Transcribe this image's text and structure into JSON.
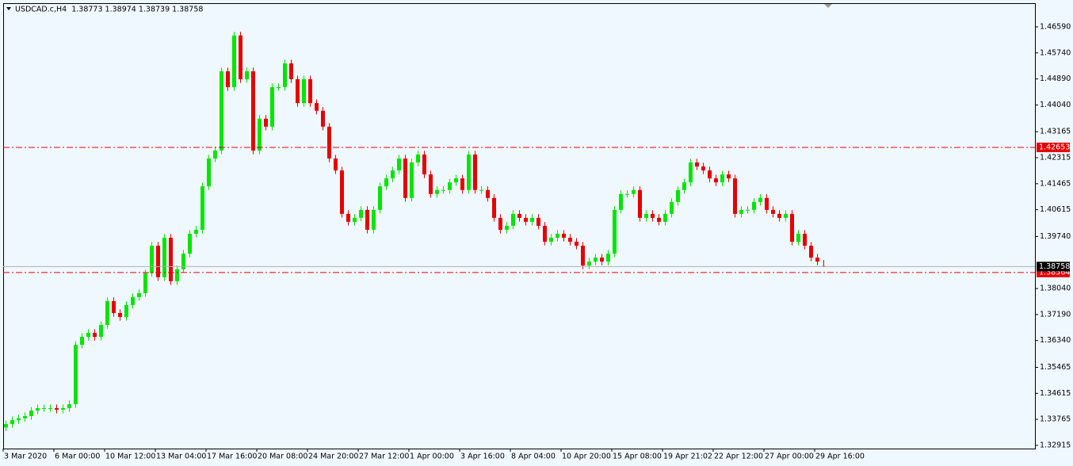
{
  "chart_data": {
    "type": "candlestick",
    "title": "USDCAD.c,H4  1.38773 1.38974 1.38739 1.38758",
    "up_color": "#00e600",
    "down_color": "#e60000",
    "hline_color": "#e60000",
    "ylim": [
      1.3281,
      1.4734
    ],
    "yticks": [
      {
        "value": 1.4659,
        "label": "1.46590"
      },
      {
        "value": 1.4574,
        "label": "1.45740"
      },
      {
        "value": 1.4489,
        "label": "1.44890"
      },
      {
        "value": 1.4404,
        "label": "1.44040"
      },
      {
        "value": 1.43165,
        "label": "1.43165"
      },
      {
        "value": 1.42315,
        "label": "1.42315"
      },
      {
        "value": 1.41465,
        "label": "1.41465"
      },
      {
        "value": 1.40615,
        "label": "1.40615"
      },
      {
        "value": 1.3974,
        "label": "1.39740"
      },
      {
        "value": 1.3804,
        "label": "1.38040"
      },
      {
        "value": 1.3719,
        "label": "1.37190"
      },
      {
        "value": 1.3634,
        "label": "1.36340"
      },
      {
        "value": 1.35465,
        "label": "1.35465"
      },
      {
        "value": 1.34615,
        "label": "1.34615"
      },
      {
        "value": 1.33765,
        "label": "1.33765"
      },
      {
        "value": 1.32915,
        "label": "1.32915"
      }
    ],
    "hlines": [
      1.42653,
      1.38564
    ],
    "current_price": 1.38758,
    "categories": [
      "3 Mar 2020",
      null,
      null,
      null,
      null,
      null,
      null,
      null,
      "6 Mar 00:00",
      null,
      null,
      null,
      null,
      null,
      null,
      null,
      "10 Mar 12:00",
      null,
      null,
      null,
      null,
      null,
      null,
      null,
      "13 Mar 04:00",
      null,
      null,
      null,
      null,
      null,
      null,
      null,
      "17 Mar 16:00",
      null,
      null,
      null,
      null,
      null,
      null,
      null,
      "20 Mar 08:00",
      null,
      null,
      null,
      null,
      null,
      null,
      null,
      "24 Mar 20:00",
      null,
      null,
      null,
      null,
      null,
      null,
      null,
      "27 Mar 12:00",
      null,
      null,
      null,
      null,
      null,
      null,
      null,
      "1 Apr 00:00",
      null,
      null,
      null,
      null,
      null,
      null,
      null,
      "3 Apr 16:00",
      null,
      null,
      null,
      null,
      null,
      null,
      null,
      "8 Apr 04:00",
      null,
      null,
      null,
      null,
      null,
      null,
      null,
      "10 Apr 20:00",
      null,
      null,
      null,
      null,
      null,
      null,
      null,
      "15 Apr 08:00",
      null,
      null,
      null,
      null,
      null,
      null,
      null,
      "19 Apr 21:02",
      null,
      null,
      null,
      null,
      null,
      null,
      null,
      "22 Apr 12:00",
      null,
      null,
      null,
      null,
      null,
      null,
      null,
      "27 Apr 00:00",
      null,
      null,
      null,
      null,
      null,
      null,
      null,
      "29 Apr 16:00",
      null
    ],
    "open": [
      1.335,
      1.3361,
      1.3374,
      1.338,
      1.3387,
      1.3405,
      1.3413,
      1.3413,
      1.3413,
      1.3408,
      1.3413,
      1.3426,
      1.362,
      1.3646,
      1.3659,
      1.3646,
      1.3685,
      1.3763,
      1.3724,
      1.3711,
      1.375,
      1.3776,
      1.3789,
      1.3854,
      1.3944,
      1.3841,
      1.397,
      1.3828,
      1.3867,
      1.3918,
      1.3983,
      1.3996,
      1.4138,
      1.4229,
      1.4255,
      1.4514,
      1.4462,
      1.4631,
      1.4488,
      1.4514,
      1.4255,
      1.4359,
      1.4333,
      1.4462,
      1.4462,
      1.454,
      1.4488,
      1.441,
      1.4488,
      1.441,
      1.4385,
      1.4333,
      1.4229,
      1.419,
      1.4048,
      1.4022,
      1.4035,
      1.4061,
      1.3996,
      1.4061,
      1.4138,
      1.4164,
      1.419,
      1.4229,
      1.41,
      1.4216,
      1.4242,
      1.4177,
      1.4113,
      1.4126,
      1.4126,
      1.4151,
      1.4164,
      1.4126,
      1.4242,
      1.4126,
      1.4126,
      1.41,
      1.4035,
      1.3996,
      1.4009,
      1.4048,
      1.4035,
      1.4022,
      1.4035,
      1.4009,
      1.3957,
      1.397,
      1.3983,
      1.397,
      1.3957,
      1.3944,
      1.3879,
      1.3892,
      1.3905,
      1.3892,
      1.3918,
      1.4061,
      1.4113,
      1.4113,
      1.4126,
      1.4035,
      1.4048,
      1.4035,
      1.4022,
      1.4048,
      1.4087,
      1.4126,
      1.4151,
      1.4216,
      1.4203,
      1.419,
      1.4164,
      1.4151,
      1.4177,
      1.4164,
      1.4048,
      1.4061,
      1.4061,
      1.4087,
      1.41,
      1.4061,
      1.4048,
      1.4035,
      1.4048,
      1.3957,
      1.3983,
      1.3944,
      1.3905,
      1.38773
    ],
    "high": [
      1.3373,
      1.3386,
      1.3392,
      1.3399,
      1.3417,
      1.3425,
      1.3425,
      1.3425,
      1.3425,
      1.3425,
      1.3438,
      1.3632,
      1.3658,
      1.3671,
      1.3671,
      1.3697,
      1.3775,
      1.3775,
      1.3736,
      1.3762,
      1.3788,
      1.3801,
      1.3866,
      1.3956,
      1.3956,
      1.3982,
      1.3982,
      1.3879,
      1.393,
      1.3995,
      1.4008,
      1.415,
      1.4241,
      1.4267,
      1.4526,
      1.4526,
      1.4643,
      1.4643,
      1.4526,
      1.4526,
      1.4371,
      1.4371,
      1.4474,
      1.4474,
      1.4552,
      1.4552,
      1.45,
      1.45,
      1.45,
      1.4422,
      1.4397,
      1.4345,
      1.4241,
      1.4202,
      1.406,
      1.4047,
      1.4073,
      1.4073,
      1.4073,
      1.415,
      1.4176,
      1.4202,
      1.4241,
      1.4241,
      1.4228,
      1.4254,
      1.4254,
      1.4189,
      1.4138,
      1.4138,
      1.4163,
      1.4176,
      1.4176,
      1.4254,
      1.4254,
      1.4138,
      1.4138,
      1.4112,
      1.4047,
      1.4021,
      1.406,
      1.406,
      1.4047,
      1.4047,
      1.4047,
      1.4021,
      1.3982,
      1.3995,
      1.3995,
      1.3982,
      1.3969,
      1.3956,
      1.3904,
      1.3917,
      1.3917,
      1.393,
      1.4073,
      1.4125,
      1.4125,
      1.4138,
      1.4138,
      1.406,
      1.406,
      1.4047,
      1.406,
      1.4099,
      1.4138,
      1.4163,
      1.4228,
      1.4228,
      1.4215,
      1.4202,
      1.4176,
      1.4189,
      1.4189,
      1.4176,
      1.4073,
      1.4073,
      1.4099,
      1.4112,
      1.4112,
      1.4073,
      1.406,
      1.406,
      1.406,
      1.3995,
      1.3995,
      1.3956,
      1.3917,
      1.38974
    ],
    "low": [
      1.3338,
      1.3349,
      1.3362,
      1.3368,
      1.3375,
      1.3393,
      1.3401,
      1.3401,
      1.3396,
      1.3396,
      1.3401,
      1.3414,
      1.3608,
      1.3634,
      1.3634,
      1.3634,
      1.3673,
      1.3712,
      1.3699,
      1.3699,
      1.3738,
      1.3764,
      1.3777,
      1.3842,
      1.3829,
      1.3829,
      1.3816,
      1.3816,
      1.3855,
      1.3906,
      1.3971,
      1.3984,
      1.4126,
      1.4217,
      1.4243,
      1.445,
      1.445,
      1.4476,
      1.4476,
      1.4243,
      1.4243,
      1.4321,
      1.4321,
      1.445,
      1.445,
      1.4476,
      1.4398,
      1.4398,
      1.4398,
      1.4373,
      1.4321,
      1.4217,
      1.4178,
      1.4036,
      1.401,
      1.401,
      1.4023,
      1.3984,
      1.3984,
      1.4049,
      1.4126,
      1.4152,
      1.4178,
      1.4088,
      1.4088,
      1.4204,
      1.4165,
      1.4101,
      1.4101,
      1.4114,
      1.4114,
      1.4139,
      1.4114,
      1.4114,
      1.4114,
      1.4114,
      1.4088,
      1.4023,
      1.3984,
      1.3984,
      1.3997,
      1.4023,
      1.401,
      1.401,
      1.3997,
      1.3945,
      1.3945,
      1.3958,
      1.3958,
      1.3945,
      1.3932,
      1.3867,
      1.3867,
      1.388,
      1.388,
      1.388,
      1.3906,
      1.4049,
      1.4101,
      1.4101,
      1.4023,
      1.4023,
      1.4023,
      1.401,
      1.401,
      1.4036,
      1.4075,
      1.4114,
      1.4139,
      1.4191,
      1.4178,
      1.4152,
      1.4139,
      1.4139,
      1.4152,
      1.4036,
      1.4036,
      1.4049,
      1.4049,
      1.4075,
      1.4049,
      1.4036,
      1.4023,
      1.4023,
      1.3945,
      1.3945,
      1.3932,
      1.3893,
      1.388,
      1.38739
    ],
    "close": [
      1.3361,
      1.3374,
      1.338,
      1.3387,
      1.3405,
      1.3413,
      1.3413,
      1.3413,
      1.3408,
      1.3413,
      1.3426,
      1.362,
      1.3646,
      1.3659,
      1.3646,
      1.3685,
      1.3763,
      1.3724,
      1.3711,
      1.375,
      1.3776,
      1.3789,
      1.3854,
      1.3944,
      1.3841,
      1.397,
      1.3828,
      1.3867,
      1.3918,
      1.3983,
      1.3996,
      1.4138,
      1.4229,
      1.4255,
      1.4514,
      1.4462,
      1.4631,
      1.4488,
      1.4514,
      1.4255,
      1.4359,
      1.4333,
      1.4462,
      1.4462,
      1.454,
      1.4488,
      1.441,
      1.4488,
      1.441,
      1.4385,
      1.4333,
      1.4229,
      1.419,
      1.4048,
      1.4022,
      1.4035,
      1.4061,
      1.3996,
      1.4061,
      1.4138,
      1.4164,
      1.419,
      1.4229,
      1.41,
      1.4216,
      1.4242,
      1.4177,
      1.4113,
      1.4126,
      1.4126,
      1.4151,
      1.4164,
      1.4126,
      1.4242,
      1.4126,
      1.4126,
      1.41,
      1.4035,
      1.3996,
      1.4009,
      1.4048,
      1.4035,
      1.4022,
      1.4035,
      1.4009,
      1.3957,
      1.397,
      1.3983,
      1.397,
      1.3957,
      1.3944,
      1.3879,
      1.3892,
      1.3905,
      1.3892,
      1.3918,
      1.4061,
      1.4113,
      1.4113,
      1.4126,
      1.4035,
      1.4048,
      1.4035,
      1.4022,
      1.4048,
      1.4087,
      1.4126,
      1.4151,
      1.4216,
      1.4203,
      1.419,
      1.4164,
      1.4151,
      1.4177,
      1.4164,
      1.4048,
      1.4061,
      1.4061,
      1.4087,
      1.41,
      1.4061,
      1.4048,
      1.4035,
      1.4048,
      1.3957,
      1.3983,
      1.3944,
      1.3905,
      1.3892,
      1.38758
    ]
  }
}
